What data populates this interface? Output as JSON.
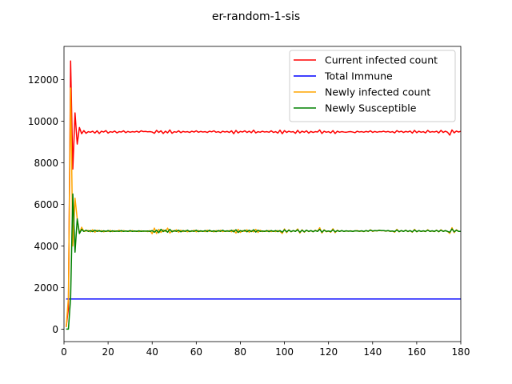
{
  "chart_data": {
    "type": "line",
    "title": "er-random-1-sis",
    "xlabel": "",
    "ylabel": "",
    "xlim": [
      0,
      180
    ],
    "ylim": [
      -600,
      13600
    ],
    "xticks": [
      0,
      20,
      40,
      60,
      80,
      100,
      120,
      140,
      160,
      180
    ],
    "yticks": [
      0,
      2000,
      4000,
      6000,
      8000,
      10000,
      12000
    ],
    "grid": false,
    "legend_position": "top-right",
    "series": [
      {
        "name": "Current infected count",
        "color": "#ff0000",
        "x": [
          1,
          2,
          3,
          4,
          5,
          6,
          7,
          8,
          9,
          10,
          11,
          12,
          13,
          14,
          15,
          16,
          17,
          18,
          19,
          20,
          21,
          22,
          23,
          24,
          25,
          26,
          27,
          28,
          29,
          30,
          31,
          32,
          33,
          34,
          35,
          36,
          37,
          38,
          39,
          40,
          41,
          42,
          43,
          44,
          45,
          46,
          47,
          48,
          49,
          50,
          51,
          52,
          53,
          54,
          55,
          56,
          57,
          58,
          59,
          60,
          61,
          62,
          63,
          64,
          65,
          66,
          67,
          68,
          69,
          70,
          71,
          72,
          73,
          74,
          75,
          76,
          77,
          78,
          79,
          80,
          81,
          82,
          83,
          84,
          85,
          86,
          87,
          88,
          89,
          90,
          91,
          92,
          93,
          94,
          95,
          96,
          97,
          98,
          99,
          100,
          101,
          102,
          103,
          104,
          105,
          106,
          107,
          108,
          109,
          110,
          111,
          112,
          113,
          114,
          115,
          116,
          117,
          118,
          119,
          120,
          121,
          122,
          123,
          124,
          125,
          126,
          127,
          128,
          129,
          130,
          131,
          132,
          133,
          134,
          135,
          136,
          137,
          138,
          139,
          140,
          141,
          142,
          143,
          144,
          145,
          146,
          147,
          148,
          149,
          150,
          151,
          152,
          153,
          154,
          155,
          156,
          157,
          158,
          159,
          160,
          161,
          162,
          163,
          164,
          165,
          166,
          167,
          168,
          169,
          170,
          171,
          172,
          173,
          174,
          175,
          176,
          177,
          178,
          179,
          180
        ],
        "y": [
          100,
          1000,
          12900,
          7700,
          10400,
          8900,
          9700,
          9400,
          9550,
          9420,
          9500,
          9470,
          9520,
          9430,
          9540,
          9410,
          9520,
          9480,
          9550,
          9430,
          9500,
          9470,
          9530,
          9440,
          9500,
          9480,
          9540,
          9450,
          9510,
          9470,
          9500,
          9480,
          9520,
          9470,
          9540,
          9500,
          9510,
          9490,
          9500,
          9480,
          9420,
          9560,
          9460,
          9540,
          9410,
          9520,
          9440,
          9580,
          9420,
          9500,
          9470,
          9540,
          9450,
          9510,
          9480,
          9500,
          9460,
          9520,
          9480,
          9540,
          9470,
          9510,
          9480,
          9500,
          9460,
          9520,
          9490,
          9540,
          9470,
          9500,
          9450,
          9520,
          9480,
          9510,
          9460,
          9540,
          9400,
          9560,
          9440,
          9510,
          9480,
          9540,
          9460,
          9520,
          9450,
          9570,
          9440,
          9500,
          9470,
          9520,
          9480,
          9500,
          9470,
          9540,
          9460,
          9500,
          9430,
          9570,
          9400,
          9550,
          9460,
          9520,
          9480,
          9500,
          9420,
          9560,
          9440,
          9520,
          9470,
          9540,
          9430,
          9510,
          9460,
          9500,
          9480,
          9580,
          9410,
          9520,
          9470,
          9500,
          9440,
          9550,
          9410,
          9520,
          9470,
          9500,
          9480,
          9470,
          9490,
          9500,
          9480,
          9450,
          9520,
          9480,
          9500,
          9470,
          9510,
          9480,
          9540,
          9460,
          9510,
          9470,
          9500,
          9490,
          9520,
          9480,
          9510,
          9470,
          9500,
          9440,
          9550,
          9480,
          9520,
          9460,
          9510,
          9480,
          9530,
          9430,
          9560,
          9450,
          9520,
          9470,
          9500,
          9440,
          9560,
          9470,
          9500,
          9480,
          9520,
          9440,
          9560,
          9460,
          9520,
          9470,
          9330,
          9580,
          9440,
          9530,
          9480,
          9520
        ]
      },
      {
        "name": "Total Immune",
        "color": "#0000ff",
        "x": [
          1,
          180
        ],
        "y": [
          1450,
          1450
        ]
      },
      {
        "name": "Newly infected count",
        "color": "#ffa500",
        "x": [
          1,
          2,
          3,
          4,
          5,
          6,
          7,
          8,
          9,
          10,
          11,
          12,
          13,
          14,
          15,
          16,
          17,
          18,
          19,
          20,
          21,
          22,
          23,
          24,
          25,
          26,
          27,
          28,
          29,
          30,
          31,
          32,
          33,
          34,
          35,
          36,
          37,
          38,
          39,
          40,
          41,
          42,
          43,
          44,
          45,
          46,
          47,
          48,
          49,
          50,
          51,
          52,
          53,
          54,
          55,
          56,
          57,
          58,
          59,
          60,
          61,
          62,
          63,
          64,
          65,
          66,
          67,
          68,
          69,
          70,
          71,
          72,
          73,
          74,
          75,
          76,
          77,
          78,
          79,
          80,
          81,
          82,
          83,
          84,
          85,
          86,
          87,
          88,
          89,
          90,
          91,
          92,
          93,
          94,
          95,
          96,
          97,
          98,
          99,
          100,
          101,
          102,
          103,
          104,
          105,
          106,
          107,
          108,
          109,
          110,
          111,
          112,
          113,
          114,
          115,
          116,
          117,
          118,
          119,
          120,
          121,
          122,
          123,
          124,
          125,
          126,
          127,
          128,
          129,
          130,
          131,
          132,
          133,
          134,
          135,
          136,
          137,
          138,
          139,
          140,
          141,
          142,
          143,
          144,
          145,
          146,
          147,
          148,
          149,
          150,
          151,
          152,
          153,
          154,
          155,
          156,
          157,
          158,
          159,
          160,
          161,
          162,
          163,
          164,
          165,
          166,
          167,
          168,
          169,
          170,
          171,
          172,
          173,
          174,
          175,
          176,
          177,
          178,
          179,
          180
        ],
        "y": [
          100,
          1500,
          11600,
          4000,
          6300,
          5300,
          4600,
          4900,
          4700,
          4720,
          4750,
          4680,
          4780,
          4660,
          4760,
          4700,
          4740,
          4680,
          4720,
          4700,
          4750,
          4690,
          4730,
          4700,
          4760,
          4690,
          4740,
          4710,
          4720,
          4700,
          4740,
          4700,
          4720,
          4690,
          4730,
          4700,
          4720,
          4690,
          4740,
          4590,
          4860,
          4600,
          4800,
          4650,
          4780,
          4700,
          4860,
          4620,
          4740,
          4700,
          4780,
          4660,
          4760,
          4690,
          4740,
          4680,
          4720,
          4700,
          4760,
          4680,
          4740,
          4700,
          4720,
          4690,
          4760,
          4700,
          4720,
          4680,
          4740,
          4700,
          4760,
          4690,
          4720,
          4700,
          4740,
          4680,
          4760,
          4620,
          4800,
          4650,
          4740,
          4700,
          4780,
          4660,
          4740,
          4680,
          4800,
          4650,
          4760,
          4690,
          4720,
          4700,
          4740,
          4690,
          4720,
          4690,
          4740,
          4700,
          4600,
          4820,
          4640,
          4780,
          4680,
          4740,
          4700,
          4820,
          4620,
          4780,
          4660,
          4760,
          4690,
          4740,
          4680,
          4760,
          4700,
          4880,
          4620,
          4780,
          4680,
          4720,
          4660,
          4830,
          4640,
          4760,
          4700,
          4740,
          4700,
          4720,
          4710,
          4730,
          4700,
          4720,
          4740,
          4700,
          4720,
          4690,
          4740,
          4700,
          4780,
          4700,
          4740,
          4720,
          4760,
          4730,
          4740,
          4710,
          4740,
          4700,
          4720,
          4660,
          4800,
          4680,
          4740,
          4700,
          4760,
          4690,
          4740,
          4660,
          4800,
          4680,
          4740,
          4700,
          4720,
          4690,
          4780,
          4700,
          4720,
          4690,
          4760,
          4680,
          4780,
          4700,
          4740,
          4700,
          4600,
          4880,
          4640,
          4780,
          4700,
          4700
        ]
      },
      {
        "name": "Newly Susceptible",
        "color": "#008000",
        "x": [
          1,
          2,
          3,
          4,
          5,
          6,
          7,
          8,
          9,
          10,
          11,
          12,
          13,
          14,
          15,
          16,
          17,
          18,
          19,
          20,
          21,
          22,
          23,
          24,
          25,
          26,
          27,
          28,
          29,
          30,
          31,
          32,
          33,
          34,
          35,
          36,
          37,
          38,
          39,
          40,
          41,
          42,
          43,
          44,
          45,
          46,
          47,
          48,
          49,
          50,
          51,
          52,
          53,
          54,
          55,
          56,
          57,
          58,
          59,
          60,
          61,
          62,
          63,
          64,
          65,
          66,
          67,
          68,
          69,
          70,
          71,
          72,
          73,
          74,
          75,
          76,
          77,
          78,
          79,
          80,
          81,
          82,
          83,
          84,
          85,
          86,
          87,
          88,
          89,
          90,
          91,
          92,
          93,
          94,
          95,
          96,
          97,
          98,
          99,
          100,
          101,
          102,
          103,
          104,
          105,
          106,
          107,
          108,
          109,
          110,
          111,
          112,
          113,
          114,
          115,
          116,
          117,
          118,
          119,
          120,
          121,
          122,
          123,
          124,
          125,
          126,
          127,
          128,
          129,
          130,
          131,
          132,
          133,
          134,
          135,
          136,
          137,
          138,
          139,
          140,
          141,
          142,
          143,
          144,
          145,
          146,
          147,
          148,
          149,
          150,
          151,
          152,
          153,
          154,
          155,
          156,
          157,
          158,
          159,
          160,
          161,
          162,
          163,
          164,
          165,
          166,
          167,
          168,
          169,
          170,
          171,
          172,
          173,
          174,
          175,
          176,
          177,
          178,
          179,
          180
        ],
        "y": [
          0,
          0,
          1500,
          6500,
          3700,
          5300,
          4600,
          4800,
          4700,
          4760,
          4700,
          4740,
          4690,
          4760,
          4700,
          4740,
          4690,
          4730,
          4700,
          4740,
          4690,
          4730,
          4700,
          4720,
          4700,
          4740,
          4700,
          4720,
          4700,
          4740,
          4700,
          4720,
          4700,
          4730,
          4700,
          4720,
          4710,
          4720,
          4700,
          4740,
          4660,
          4760,
          4640,
          4800,
          4690,
          4760,
          4660,
          4800,
          4680,
          4740,
          4700,
          4760,
          4680,
          4740,
          4700,
          4760,
          4690,
          4730,
          4700,
          4760,
          4690,
          4730,
          4700,
          4740,
          4690,
          4760,
          4700,
          4730,
          4690,
          4740,
          4700,
          4760,
          4700,
          4730,
          4700,
          4760,
          4680,
          4780,
          4650,
          4740,
          4700,
          4760,
          4680,
          4760,
          4690,
          4780,
          4670,
          4760,
          4700,
          4720,
          4700,
          4740,
          4690,
          4740,
          4700,
          4740,
          4690,
          4740,
          4660,
          4780,
          4680,
          4760,
          4690,
          4740,
          4700,
          4780,
          4660,
          4760,
          4680,
          4760,
          4700,
          4740,
          4690,
          4740,
          4700,
          4800,
          4660,
          4760,
          4700,
          4720,
          4690,
          4780,
          4680,
          4740,
          4700,
          4740,
          4700,
          4730,
          4710,
          4720,
          4700,
          4730,
          4720,
          4710,
          4730,
          4700,
          4740,
          4710,
          4760,
          4720,
          4740,
          4730,
          4750,
          4740,
          4740,
          4720,
          4740,
          4710,
          4720,
          4690,
          4770,
          4690,
          4740,
          4700,
          4750,
          4700,
          4740,
          4680,
          4770,
          4690,
          4740,
          4700,
          4730,
          4700,
          4760,
          4700,
          4730,
          4700,
          4750,
          4690,
          4760,
          4700,
          4740,
          4700,
          4660,
          4820,
          4680,
          4760,
          4700,
          4700
        ]
      }
    ]
  }
}
